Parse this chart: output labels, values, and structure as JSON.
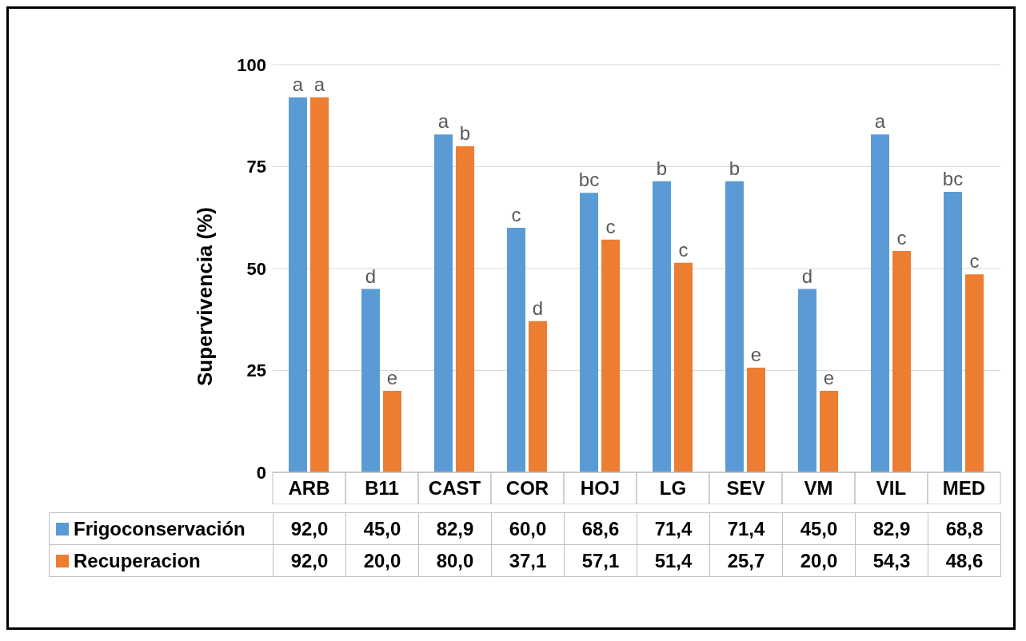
{
  "chart_data": {
    "type": "bar",
    "ylabel": "Supervivencia (%)",
    "categories": [
      "ARB",
      "B11",
      "CAST",
      "COR",
      "HOJ",
      "LG",
      "SEV",
      "VM",
      "VIL",
      "MED"
    ],
    "series": [
      {
        "name": "Frigoconservación",
        "color": "#5b9bd5",
        "values": [
          92.0,
          45.0,
          82.9,
          60.0,
          68.6,
          71.4,
          71.4,
          45.0,
          82.9,
          68.8
        ],
        "value_labels": [
          "92,0",
          "45,0",
          "82,9",
          "60,0",
          "68,6",
          "71,4",
          "71,4",
          "45,0",
          "82,9",
          "68,8"
        ]
      },
      {
        "name": "Recuperacion",
        "color": "#ed7d31",
        "values": [
          92.0,
          20.0,
          80.0,
          37.1,
          57.1,
          51.4,
          25.7,
          20.0,
          54.3,
          48.6
        ],
        "value_labels": [
          "92,0",
          "20,0",
          "80,0",
          "37,1",
          "57,1",
          "51,4",
          "25,7",
          "20,0",
          "54,3",
          "48,6"
        ]
      }
    ],
    "ylim": [
      0,
      100
    ],
    "yticks": [
      0,
      25,
      50,
      75,
      100
    ],
    "grid": "y",
    "legend": "bottom",
    "annotations": [
      {
        "text": "a",
        "x": "ARB",
        "y": 92.0
      },
      {
        "text": "a",
        "x": "ARB",
        "y": 92.0
      },
      {
        "text": "d",
        "x": "B11",
        "y": 45.0
      },
      {
        "text": "e",
        "x": "B11",
        "y": 20.0
      },
      {
        "text": "a",
        "x": "CAST",
        "y": 82.9
      },
      {
        "text": "b",
        "x": "CAST",
        "y": 80.0
      },
      {
        "text": "c",
        "x": "COR",
        "y": 60.0
      },
      {
        "text": "d",
        "x": "COR",
        "y": 37.1
      },
      {
        "text": "bc",
        "x": "HOJ",
        "y": 68.6
      },
      {
        "text": "c",
        "x": "HOJ",
        "y": 57.1
      },
      {
        "text": "b",
        "x": "LG",
        "y": 71.4
      },
      {
        "text": "c",
        "x": "LG",
        "y": 51.4
      },
      {
        "text": "b",
        "x": "SEV",
        "y": 71.4
      },
      {
        "text": "e",
        "x": "SEV",
        "y": 25.7
      },
      {
        "text": "d",
        "x": "VM",
        "y": 45.0
      },
      {
        "text": "e",
        "x": "VM",
        "y": 20.0
      },
      {
        "text": "a",
        "x": "VIL",
        "y": 82.9
      },
      {
        "text": "c",
        "x": "VIL",
        "y": 54.3
      },
      {
        "text": "bc",
        "x": "MED",
        "y": 68.8
      },
      {
        "text": "c",
        "x": "MED",
        "y": 48.6
      }
    ]
  }
}
